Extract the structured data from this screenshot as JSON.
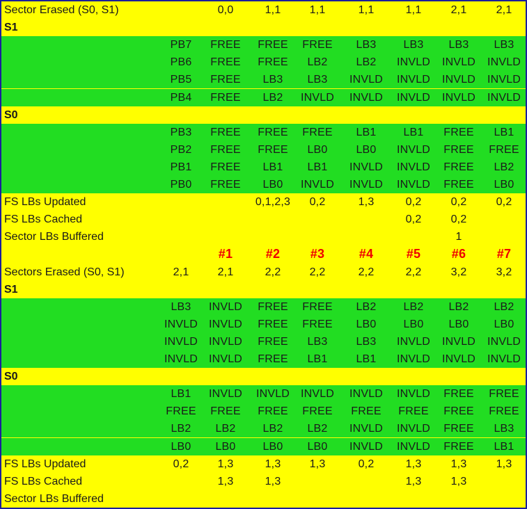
{
  "rows": [
    {
      "label": "Sector Erased (S0, S1)",
      "bg": "yellow",
      "cells": [
        "",
        "0,0",
        "1,1",
        "1,1",
        "1,1",
        "1,1",
        "2,1",
        "2,1"
      ]
    },
    {
      "label": "S1",
      "bg": "yellow",
      "bold": true,
      "cells": []
    },
    {
      "label": "",
      "bg": "green",
      "cells": [
        "PB7",
        "FREE",
        "FREE",
        "FREE",
        "LB3",
        "LB3",
        "LB3",
        "LB3"
      ]
    },
    {
      "label": "",
      "bg": "green",
      "cells": [
        "PB6",
        "FREE",
        "FREE",
        "LB2",
        "LB2",
        "INVLD",
        "INVLD",
        "INVLD"
      ]
    },
    {
      "label": "",
      "bg": "green",
      "cells": [
        "PB5",
        "FREE",
        "LB3",
        "LB3",
        "INVLD",
        "INVLD",
        "INVLD",
        "INVLD"
      ]
    },
    {
      "label": "",
      "bg": "green",
      "cells": [
        "PB4",
        "FREE",
        "LB2",
        "INVLD",
        "INVLD",
        "INVLD",
        "INVLD",
        "INVLD"
      ]
    },
    {
      "label": "S0",
      "bg": "yellow",
      "bold": true,
      "cells": []
    },
    {
      "label": "",
      "bg": "green",
      "cells": [
        "PB3",
        "FREE",
        "FREE",
        "FREE",
        "LB1",
        "LB1",
        "FREE",
        "LB1"
      ]
    },
    {
      "label": "",
      "bg": "green",
      "cells": [
        "PB2",
        "FREE",
        "FREE",
        "LB0",
        "LB0",
        "INVLD",
        "FREE",
        "FREE"
      ]
    },
    {
      "label": "",
      "bg": "green",
      "cells": [
        "PB1",
        "FREE",
        "LB1",
        "LB1",
        "INVLD",
        "INVLD",
        "FREE",
        "LB2"
      ]
    },
    {
      "label": "",
      "bg": "green",
      "cells": [
        "PB0",
        "FREE",
        "LB0",
        "INVLD",
        "INVLD",
        "INVLD",
        "FREE",
        "LB0"
      ]
    },
    {
      "label": "FS LBs Updated",
      "bg": "yellow",
      "cells": [
        "",
        "",
        "0,1,2,3",
        "0,2",
        "1,3",
        "0,2",
        "0,2",
        "0,2"
      ]
    },
    {
      "label": "FS LBs Cached",
      "bg": "yellow",
      "cells": [
        "",
        "",
        "",
        "",
        "",
        "0,2",
        "0,2",
        ""
      ]
    },
    {
      "label": "Sector LBs Buffered",
      "bg": "yellow",
      "cells": [
        "",
        "",
        "",
        "",
        "",
        "",
        "1",
        ""
      ]
    },
    {
      "label": "",
      "bg": "yellow",
      "red": true,
      "cells": [
        "",
        "#1",
        "#2",
        "#3",
        "#4",
        "#5",
        "#6",
        "#7"
      ]
    },
    {
      "label": "Sectors Erased (S0, S1)",
      "bg": "yellow",
      "cells": [
        "2,1",
        "2,1",
        "2,2",
        "2,2",
        "2,2",
        "2,2",
        "3,2",
        "3,2"
      ]
    },
    {
      "label": "S1",
      "bg": "yellow",
      "bold": true,
      "cells": []
    },
    {
      "label": "",
      "bg": "green",
      "cells": [
        "LB3",
        "INVLD",
        "FREE",
        "FREE",
        "LB2",
        "LB2",
        "LB2",
        "LB2"
      ]
    },
    {
      "label": "",
      "bg": "green",
      "cells": [
        "INVLD",
        "INVLD",
        "FREE",
        "FREE",
        "LB0",
        "LB0",
        "LB0",
        "LB0"
      ]
    },
    {
      "label": "",
      "bg": "green",
      "cells": [
        "INVLD",
        "INVLD",
        "FREE",
        "LB3",
        "LB3",
        "INVLD",
        "INVLD",
        "INVLD"
      ]
    },
    {
      "label": "",
      "bg": "green",
      "cells": [
        "INVLD",
        "INVLD",
        "FREE",
        "LB1",
        "LB1",
        "INVLD",
        "INVLD",
        "INVLD"
      ]
    },
    {
      "label": "S0",
      "bg": "yellow",
      "bold": true,
      "cells": []
    },
    {
      "label": "",
      "bg": "green",
      "cells": [
        "LB1",
        "INVLD",
        "INVLD",
        "INVLD",
        "INVLD",
        "INVLD",
        "FREE",
        "FREE"
      ]
    },
    {
      "label": "",
      "bg": "green",
      "cells": [
        "FREE",
        "FREE",
        "FREE",
        "FREE",
        "FREE",
        "FREE",
        "FREE",
        "FREE"
      ]
    },
    {
      "label": "",
      "bg": "green",
      "cells": [
        "LB2",
        "LB2",
        "LB2",
        "LB2",
        "INVLD",
        "INVLD",
        "FREE",
        "LB3"
      ]
    },
    {
      "label": "",
      "bg": "green",
      "cells": [
        "LB0",
        "LB0",
        "LB0",
        "LB0",
        "INVLD",
        "INVLD",
        "FREE",
        "LB1"
      ]
    },
    {
      "label": "FS LBs Updated",
      "bg": "yellow",
      "cells": [
        "0,2",
        "1,3",
        "1,3",
        "1,3",
        "0,2",
        "1,3",
        "1,3",
        "1,3"
      ]
    },
    {
      "label": "FS LBs Cached",
      "bg": "yellow",
      "cells": [
        "",
        "1,3",
        "1,3",
        "",
        "",
        "1,3",
        "1,3",
        ""
      ]
    },
    {
      "label": "Sector LBs Buffered",
      "bg": "yellow",
      "cells": [
        "",
        "",
        "",
        "",
        "",
        "",
        "",
        ""
      ]
    }
  ],
  "colors": {
    "yellow": "#ffff00",
    "green": "#22dd22",
    "red": "#ee0000",
    "border": "#1b1f9a"
  }
}
